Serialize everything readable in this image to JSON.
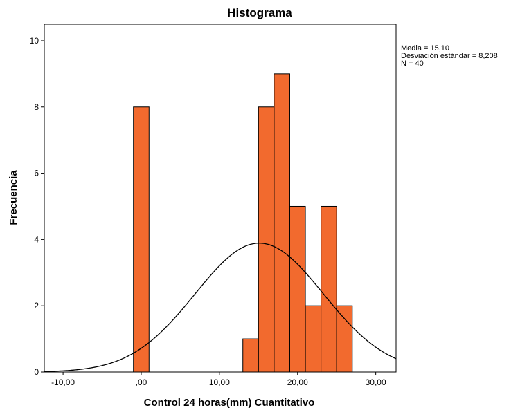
{
  "chart_data": {
    "type": "histogram",
    "title": "Histograma",
    "xlabel": "Control 24 horas(mm) Cuantitativo",
    "ylabel": "Frecuencia",
    "xlim": [
      -12.4,
      32.6
    ],
    "ylim": [
      0,
      10.5
    ],
    "x_ticks": [
      -10,
      0,
      10,
      20,
      30
    ],
    "x_tick_labels": [
      "-10,00",
      ",00",
      "10,00",
      "20,00",
      "30,00"
    ],
    "y_ticks": [
      0,
      2,
      4,
      6,
      8,
      10
    ],
    "y_tick_labels": [
      "0",
      "2",
      "4",
      "6",
      "8",
      "10"
    ],
    "bin_width": 2,
    "bins": [
      {
        "start": -1,
        "end": 1,
        "count": 8
      },
      {
        "start": 13,
        "end": 15,
        "count": 1
      },
      {
        "start": 15,
        "end": 17,
        "count": 8
      },
      {
        "start": 17,
        "end": 19,
        "count": 9
      },
      {
        "start": 19,
        "end": 21,
        "count": 5
      },
      {
        "start": 21,
        "end": 23,
        "count": 2
      },
      {
        "start": 23,
        "end": 25,
        "count": 5
      },
      {
        "start": 25,
        "end": 27,
        "count": 2
      }
    ],
    "normal_curve": {
      "mean": 15.1,
      "sd": 8.208,
      "n": 40
    },
    "stats": [
      "Media = 15,10",
      "Desviación estándar = 8,208",
      "N = 40"
    ],
    "bar_color": "#f26a2e",
    "bar_edge_color": "#000000",
    "curve_color": "#000000",
    "grid": false
  }
}
